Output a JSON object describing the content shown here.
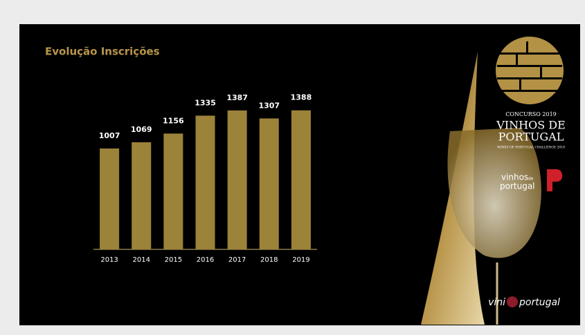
{
  "chart_data": {
    "type": "bar",
    "title": "Evolução Inscrições",
    "categories": [
      "2013",
      "2014",
      "2015",
      "2016",
      "2017",
      "2018",
      "2019"
    ],
    "values": [
      1007,
      1069,
      1156,
      1335,
      1387,
      1307,
      1388
    ],
    "color": "#9c833a",
    "ylim": [
      0,
      1400
    ],
    "grid": false
  },
  "branding": {
    "contest": "CONCURSO 2019",
    "line1": "VINHOS DE",
    "line2": "PORTUGAL",
    "tagline": "WINES OF PORTUGAL CHALLENGE 2019",
    "logo_top": "vinhos",
    "logo_de": "de",
    "logo_bottom": "portugal",
    "footer_left": "vini",
    "footer_right": "portugal"
  }
}
